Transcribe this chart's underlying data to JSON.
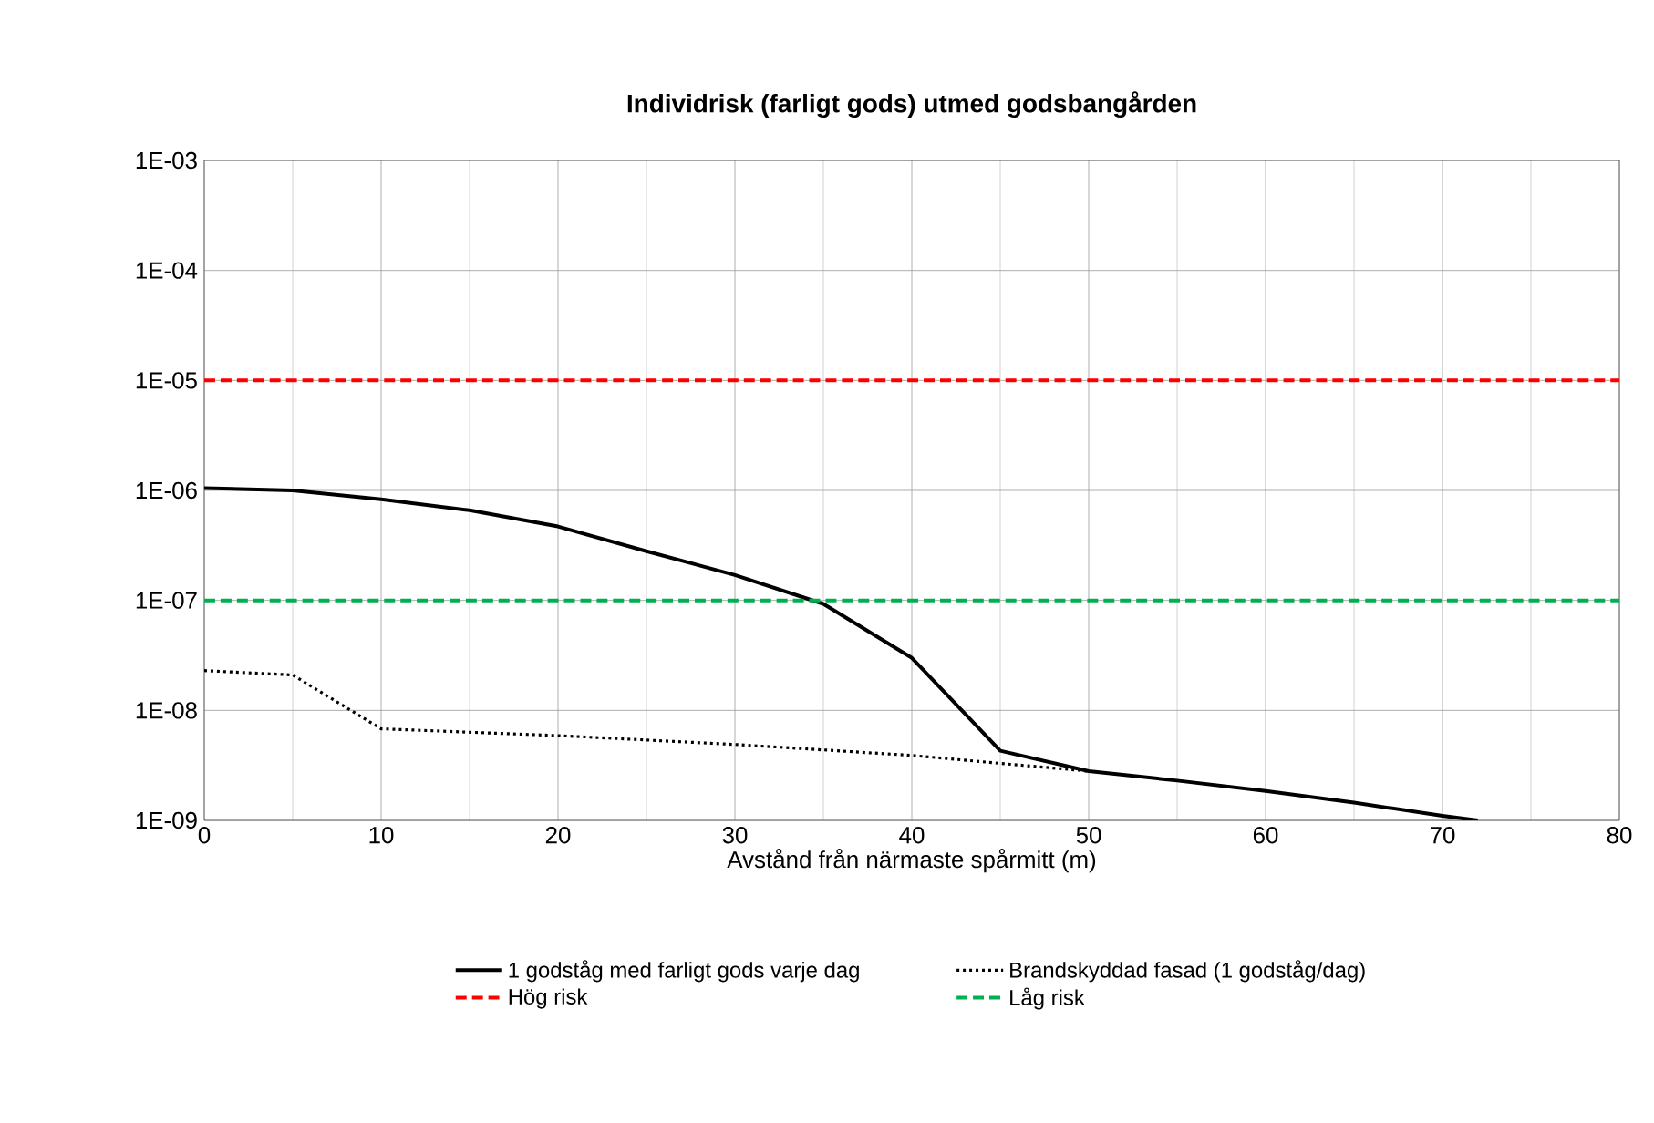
{
  "chart_data": {
    "type": "line",
    "title": "Individrisk (farligt gods) utmed godsbangården",
    "xlabel": "Avstånd från närmaste spårmitt (m)",
    "xlim": [
      0,
      80
    ],
    "xticks": [
      0,
      10,
      20,
      30,
      40,
      50,
      60,
      70,
      80
    ],
    "ylim": [
      1e-09,
      0.001
    ],
    "log": "y",
    "yticks": [
      {
        "value": 1e-09,
        "label": "1E-09"
      },
      {
        "value": 1e-08,
        "label": "1E-08"
      },
      {
        "value": 1e-07,
        "label": "1E-07"
      },
      {
        "value": 1e-06,
        "label": "1E-06"
      },
      {
        "value": 1e-05,
        "label": "1E-05"
      },
      {
        "value": 0.0001,
        "label": "1E-04"
      },
      {
        "value": 0.001,
        "label": "1E-03"
      }
    ],
    "grid": true,
    "legend": "bottom",
    "series": [
      {
        "name": "1 godståg med farligt gods varje dag",
        "color": "#000000",
        "line_style": "solid",
        "x": [
          0,
          5,
          10,
          15,
          20,
          25,
          30,
          35,
          40,
          45,
          50,
          55,
          60,
          65,
          70,
          72
        ],
        "values": [
          1.05e-06,
          1e-06,
          8.3e-07,
          6.6e-07,
          4.7e-07,
          2.8e-07,
          1.7e-07,
          9.3e-08,
          3e-08,
          4.3e-09,
          2.8e-09,
          2.3e-09,
          1.85e-09,
          1.45e-09,
          1.1e-09,
          1e-09
        ]
      },
      {
        "name": "Brandskyddad fasad (1 godståg/dag)",
        "color": "#000000",
        "line_style": "dotted",
        "x": [
          0,
          5,
          10,
          20,
          30,
          40,
          45,
          50
        ],
        "values": [
          2.3e-08,
          2.1e-08,
          6.8e-09,
          5.9e-09,
          4.9e-09,
          3.9e-09,
          3.3e-09,
          2.8e-09
        ]
      }
    ],
    "ref_lines": [
      {
        "axis": "y",
        "value": 1e-05,
        "label": "Hög risk",
        "color": "#ff0000",
        "line_style": "dashed"
      },
      {
        "axis": "y",
        "value": 1e-07,
        "label": "Låg risk",
        "color": "#00b050",
        "line_style": "dashed"
      }
    ]
  }
}
